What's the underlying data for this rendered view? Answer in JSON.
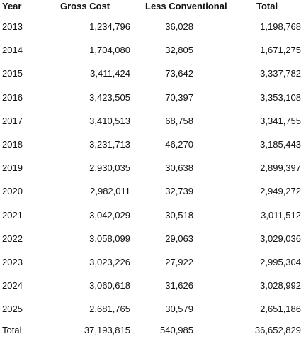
{
  "table": {
    "headers": {
      "year": "Year",
      "gross": "Gross Cost",
      "less": "Less Conventional",
      "total": "Total"
    },
    "rows": [
      {
        "year": "2013",
        "gross": "1,234,796",
        "less": "36,028",
        "total": "1,198,768"
      },
      {
        "year": "2014",
        "gross": "1,704,080",
        "less": "32,805",
        "total": "1,671,275"
      },
      {
        "year": "2015",
        "gross": "3,411,424",
        "less": "73,642",
        "total": "3,337,782"
      },
      {
        "year": "2016",
        "gross": "3,423,505",
        "less": "70,397",
        "total": "3,353,108"
      },
      {
        "year": "2017",
        "gross": "3,410,513",
        "less": "68,758",
        "total": "3,341,755"
      },
      {
        "year": "2018",
        "gross": "3,231,713",
        "less": "46,270",
        "total": "3,185,443"
      },
      {
        "year": "2019",
        "gross": "2,930,035",
        "less": "30,638",
        "total": "2,899,397"
      },
      {
        "year": "2020",
        "gross": "2,982,011",
        "less": "32,739",
        "total": "2,949,272"
      },
      {
        "year": "2021",
        "gross": "3,042,029",
        "less": "30,518",
        "total": "3,011,512"
      },
      {
        "year": "2022",
        "gross": "3,058,099",
        "less": "29,063",
        "total": "3,029,036"
      },
      {
        "year": "2023",
        "gross": "3,023,226",
        "less": "27,922",
        "total": "2,995,304"
      },
      {
        "year": "2024",
        "gross": "3,060,618",
        "less": "31,626",
        "total": "3,028,992"
      },
      {
        "year": "2025",
        "gross": "2,681,765",
        "less": "30,579",
        "total": "2,651,186"
      }
    ],
    "totals": {
      "label": "Total",
      "gross": "37,193,815",
      "less": "540,985",
      "total": "36,652,829"
    }
  }
}
